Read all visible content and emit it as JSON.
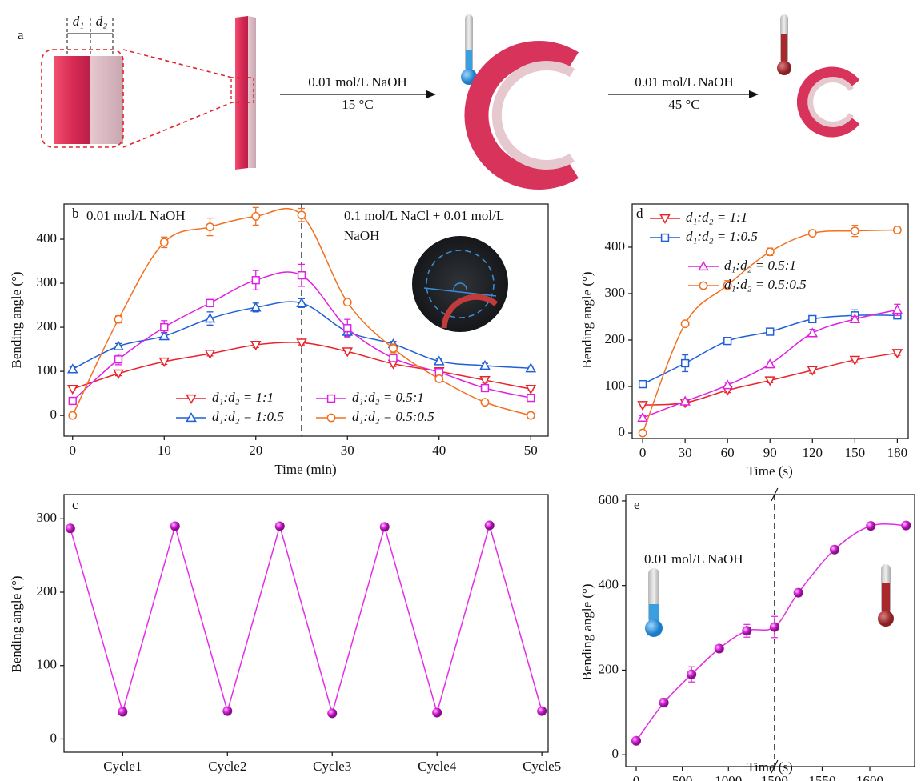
{
  "panel_a": {
    "label": "a",
    "d1": "d₁",
    "d2": "d₂",
    "arrow1_top": "0.01 mol/L NaOH",
    "arrow1_bottom": "15 °C",
    "arrow2_top": "0.01 mol/L NaOH",
    "arrow2_bottom": "45 °C"
  },
  "chart_data": [
    {
      "panel": "b",
      "type": "line",
      "smooth": true,
      "y_label": "Bending angle (°)",
      "x_label": "Time (min)",
      "x": [
        0,
        5,
        10,
        15,
        20,
        25,
        30,
        35,
        40,
        45,
        50
      ],
      "xlim": [
        -0.94,
        51.9
      ],
      "ylim": [
        -47,
        480
      ],
      "xticks": [
        0,
        10,
        20,
        30,
        40,
        50
      ],
      "yticks": [
        0,
        100,
        200,
        300,
        400
      ],
      "vline": 25,
      "annotations": [
        [
          "0.01 mol/L NaOH"
        ],
        [
          "0.1 mol/L NaCl + 0.01 mol/L",
          "NaOH"
        ]
      ],
      "series": [
        {
          "name": "d₁:d₂ = 1:1",
          "color": "#e8232b",
          "marker": "triangle-down",
          "values": [
            60,
            95,
            122,
            140,
            160,
            165,
            145,
            117,
            100,
            80,
            60
          ],
          "errors": [
            4,
            5,
            6,
            5,
            6,
            5,
            5,
            6,
            5,
            5,
            4
          ]
        },
        {
          "name": "d₁:d₂ = 1:0.5",
          "color": "#1f5fd6",
          "marker": "triangle-up",
          "values": [
            105,
            157,
            180,
            220,
            245,
            255,
            190,
            162,
            123,
            113,
            107
          ],
          "errors": [
            5,
            6,
            8,
            15,
            10,
            10,
            10,
            6,
            5,
            5,
            5
          ]
        },
        {
          "name": "d₁:d₂ = 0.5:1",
          "color": "#e020e0",
          "marker": "square",
          "values": [
            33,
            127,
            200,
            255,
            307,
            318,
            198,
            130,
            98,
            62,
            40
          ],
          "errors": [
            4,
            12,
            15,
            8,
            22,
            25,
            20,
            8,
            5,
            5,
            5
          ]
        },
        {
          "name": "d₁:d₂ = 0.5:0.5",
          "color": "#f07020",
          "marker": "circle",
          "values": [
            0,
            218,
            393,
            428,
            452,
            455,
            257,
            152,
            83,
            30,
            0
          ],
          "errors": [
            3,
            8,
            12,
            20,
            20,
            15,
            5,
            10,
            5,
            3,
            3
          ]
        }
      ]
    },
    {
      "panel": "d",
      "type": "line",
      "smooth": true,
      "y_label": "Bending angle (°)",
      "x_label": "Time (s)",
      "x": [
        0,
        30,
        60,
        90,
        120,
        150,
        180
      ],
      "xlim": [
        -7.4,
        187.7
      ],
      "ylim": [
        -12,
        493
      ],
      "xticks": [
        0,
        30,
        60,
        90,
        120,
        150,
        180
      ],
      "yticks": [
        0,
        100,
        200,
        300,
        400
      ],
      "series": [
        {
          "name": "d₁:d₂ = 1:1",
          "color": "#e8232b",
          "marker": "triangle-down",
          "values": [
            60,
            65,
            92,
            113,
            135,
            157,
            172
          ],
          "errors": [
            4,
            4,
            5,
            5,
            6,
            5,
            5
          ]
        },
        {
          "name": "d₁:d₂ = 1:0.5",
          "color": "#1f5fd6",
          "marker": "square",
          "values": [
            105,
            150,
            198,
            218,
            245,
            253,
            253
          ],
          "errors": [
            5,
            18,
            6,
            6,
            5,
            12,
            6
          ]
        },
        {
          "name": "d₁:d₂ = 0.5:1",
          "color": "#e020e0",
          "marker": "triangle-up",
          "values": [
            33,
            68,
            103,
            148,
            215,
            245,
            265
          ],
          "errors": [
            4,
            5,
            6,
            5,
            8,
            6,
            12
          ]
        },
        {
          "name": "d₁:d₂ = 0.5:0.5",
          "color": "#f07020",
          "marker": "circle",
          "values": [
            0,
            235,
            318,
            390,
            430,
            435,
            437
          ],
          "errors": [
            3,
            5,
            10,
            8,
            5,
            12,
            6
          ]
        }
      ]
    },
    {
      "panel": "c",
      "type": "line",
      "smooth": false,
      "y_label": "Bending angle (°)",
      "x": [
        0.5,
        1,
        1.5,
        2,
        2.5,
        3,
        3.5,
        4,
        4.5,
        5
      ],
      "xlim": [
        0.44,
        5.06
      ],
      "ylim": [
        -18,
        333
      ],
      "xticks": [
        {
          "value": 1,
          "label": "Cycle1"
        },
        {
          "value": 2,
          "label": "Cycle2"
        },
        {
          "value": 3,
          "label": "Cycle3"
        },
        {
          "value": 4,
          "label": "Cycle4"
        },
        {
          "value": 5,
          "label": "Cycle5"
        }
      ],
      "yticks": [
        0,
        100,
        200,
        300
      ],
      "series": [
        {
          "color": "#e62ce6",
          "marker": "sphere",
          "values": [
            287,
            37,
            290,
            38,
            290,
            35,
            289,
            36,
            291,
            38
          ]
        }
      ]
    },
    {
      "panel": "e",
      "type": "line",
      "smooth": true,
      "y_label": "Bending angle (°)",
      "x_label": "Time (s)",
      "x": [
        0,
        300,
        600,
        900,
        1200,
        1500,
        1525,
        1563,
        1601,
        1638
      ],
      "x_segments": [
        [
          -113,
          1500
        ],
        [
          1500,
          1647
        ]
      ],
      "ylim": [
        -28,
        615
      ],
      "xticks": [
        0,
        500,
        1000,
        1500,
        1550,
        1600
      ],
      "yticks": [
        0,
        200,
        400,
        600
      ],
      "vline": 1500,
      "annotations": [
        [
          "0.01 mol/L NaOH"
        ]
      ],
      "series": [
        {
          "color": "#e62ce6",
          "marker": "sphere",
          "values": [
            33,
            123,
            190,
            251,
            293,
            302,
            383,
            485,
            541,
            542
          ],
          "errors": [
            5,
            10,
            18,
            8,
            15,
            25,
            8,
            8,
            5,
            8
          ]
        }
      ]
    }
  ]
}
